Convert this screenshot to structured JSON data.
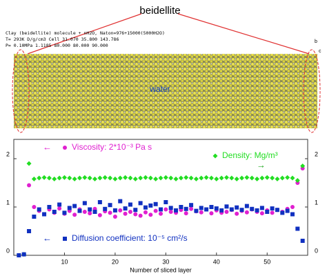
{
  "figure": {
    "label": "beidellite",
    "header": [
      "Clay (beidellite) molecule + nH2O, Naton=976+15000(5000H2O)",
      "T= 293K    D/g/cm3    Cell   31.070   35.800  143.786",
      "P= 0.10MPa   1.1185         80.000   80.000   90.000"
    ],
    "water": "water",
    "axis_b": "b",
    "axis_c": "c"
  },
  "chart_data": {
    "type": "scatter",
    "xlabel": "Number of sliced layer",
    "x": [
      1,
      2,
      3,
      4,
      5,
      6,
      7,
      8,
      9,
      10,
      11,
      12,
      13,
      14,
      15,
      16,
      17,
      18,
      19,
      20,
      21,
      22,
      23,
      24,
      25,
      26,
      27,
      28,
      29,
      30,
      31,
      32,
      33,
      34,
      35,
      36,
      37,
      38,
      39,
      40,
      41,
      42,
      43,
      44,
      45,
      46,
      47,
      48,
      49,
      50,
      51,
      52,
      53,
      54,
      55,
      56,
      57
    ],
    "xlim": [
      0,
      58
    ],
    "xticks": [
      10,
      20,
      30,
      40,
      50
    ],
    "ylim": [
      0,
      2.4
    ],
    "yticks": [
      0,
      1,
      2
    ],
    "y2lim": [
      0,
      2.4
    ],
    "y2ticks": [
      0,
      1,
      2
    ],
    "series": [
      {
        "name": "Viscosity: 2*10⁻³ Pa s",
        "color": "#e020d0",
        "marker": "circle",
        "values": [
          null,
          null,
          1.45,
          1.0,
          0.92,
          0.85,
          0.95,
          0.88,
          0.97,
          0.86,
          0.92,
          0.84,
          0.95,
          0.9,
          0.87,
          0.96,
          0.83,
          0.91,
          0.88,
          0.8,
          0.93,
          0.86,
          0.9,
          0.85,
          0.82,
          0.89,
          0.84,
          0.92,
          0.86,
          0.95,
          0.9,
          0.88,
          0.94,
          0.87,
          0.96,
          0.91,
          0.89,
          0.95,
          0.87,
          0.93,
          0.88,
          0.9,
          0.94,
          0.86,
          0.92,
          0.89,
          0.95,
          0.9,
          0.87,
          0.93,
          0.88,
          0.94,
          0.9,
          0.96,
          1.0,
          1.5,
          1.8
        ]
      },
      {
        "name": "Density: Mg/m³",
        "color": "#22dd22",
        "marker": "diamond",
        "axis": "y2",
        "values": [
          null,
          0.02,
          1.9,
          1.58,
          1.6,
          1.61,
          1.6,
          1.58,
          1.6,
          1.61,
          1.6,
          1.58,
          1.6,
          1.61,
          1.6,
          1.58,
          1.6,
          1.61,
          1.6,
          1.58,
          1.6,
          1.61,
          1.6,
          1.58,
          1.6,
          1.61,
          1.6,
          1.58,
          1.6,
          1.61,
          1.6,
          1.58,
          1.6,
          1.61,
          1.6,
          1.58,
          1.6,
          1.61,
          1.6,
          1.58,
          1.6,
          1.61,
          1.6,
          1.58,
          1.6,
          1.61,
          1.6,
          1.58,
          1.6,
          1.61,
          1.6,
          1.58,
          1.6,
          1.61,
          1.6,
          1.55,
          1.85
        ]
      },
      {
        "name": "Diffusion coefficient: 10⁻⁵ cm²/s",
        "color": "#1030c0",
        "marker": "square",
        "values": [
          0.0,
          0.02,
          0.5,
          0.8,
          0.95,
          0.85,
          1.0,
          0.9,
          1.05,
          0.88,
          0.98,
          1.02,
          0.92,
          1.08,
          0.95,
          0.9,
          1.1,
          0.96,
          1.04,
          0.93,
          1.12,
          0.97,
          1.05,
          0.94,
          1.08,
          0.99,
          1.03,
          1.06,
          0.95,
          1.1,
          0.98,
          0.93,
          1.0,
          0.96,
          1.04,
          0.92,
          0.98,
          0.95,
          1.0,
          0.97,
          0.93,
          1.01,
          0.95,
          0.99,
          0.94,
          1.02,
          0.96,
          0.93,
          0.98,
          0.9,
          0.97,
          0.94,
          0.88,
          0.92,
          0.85,
          0.55,
          0.3
        ]
      }
    ]
  }
}
